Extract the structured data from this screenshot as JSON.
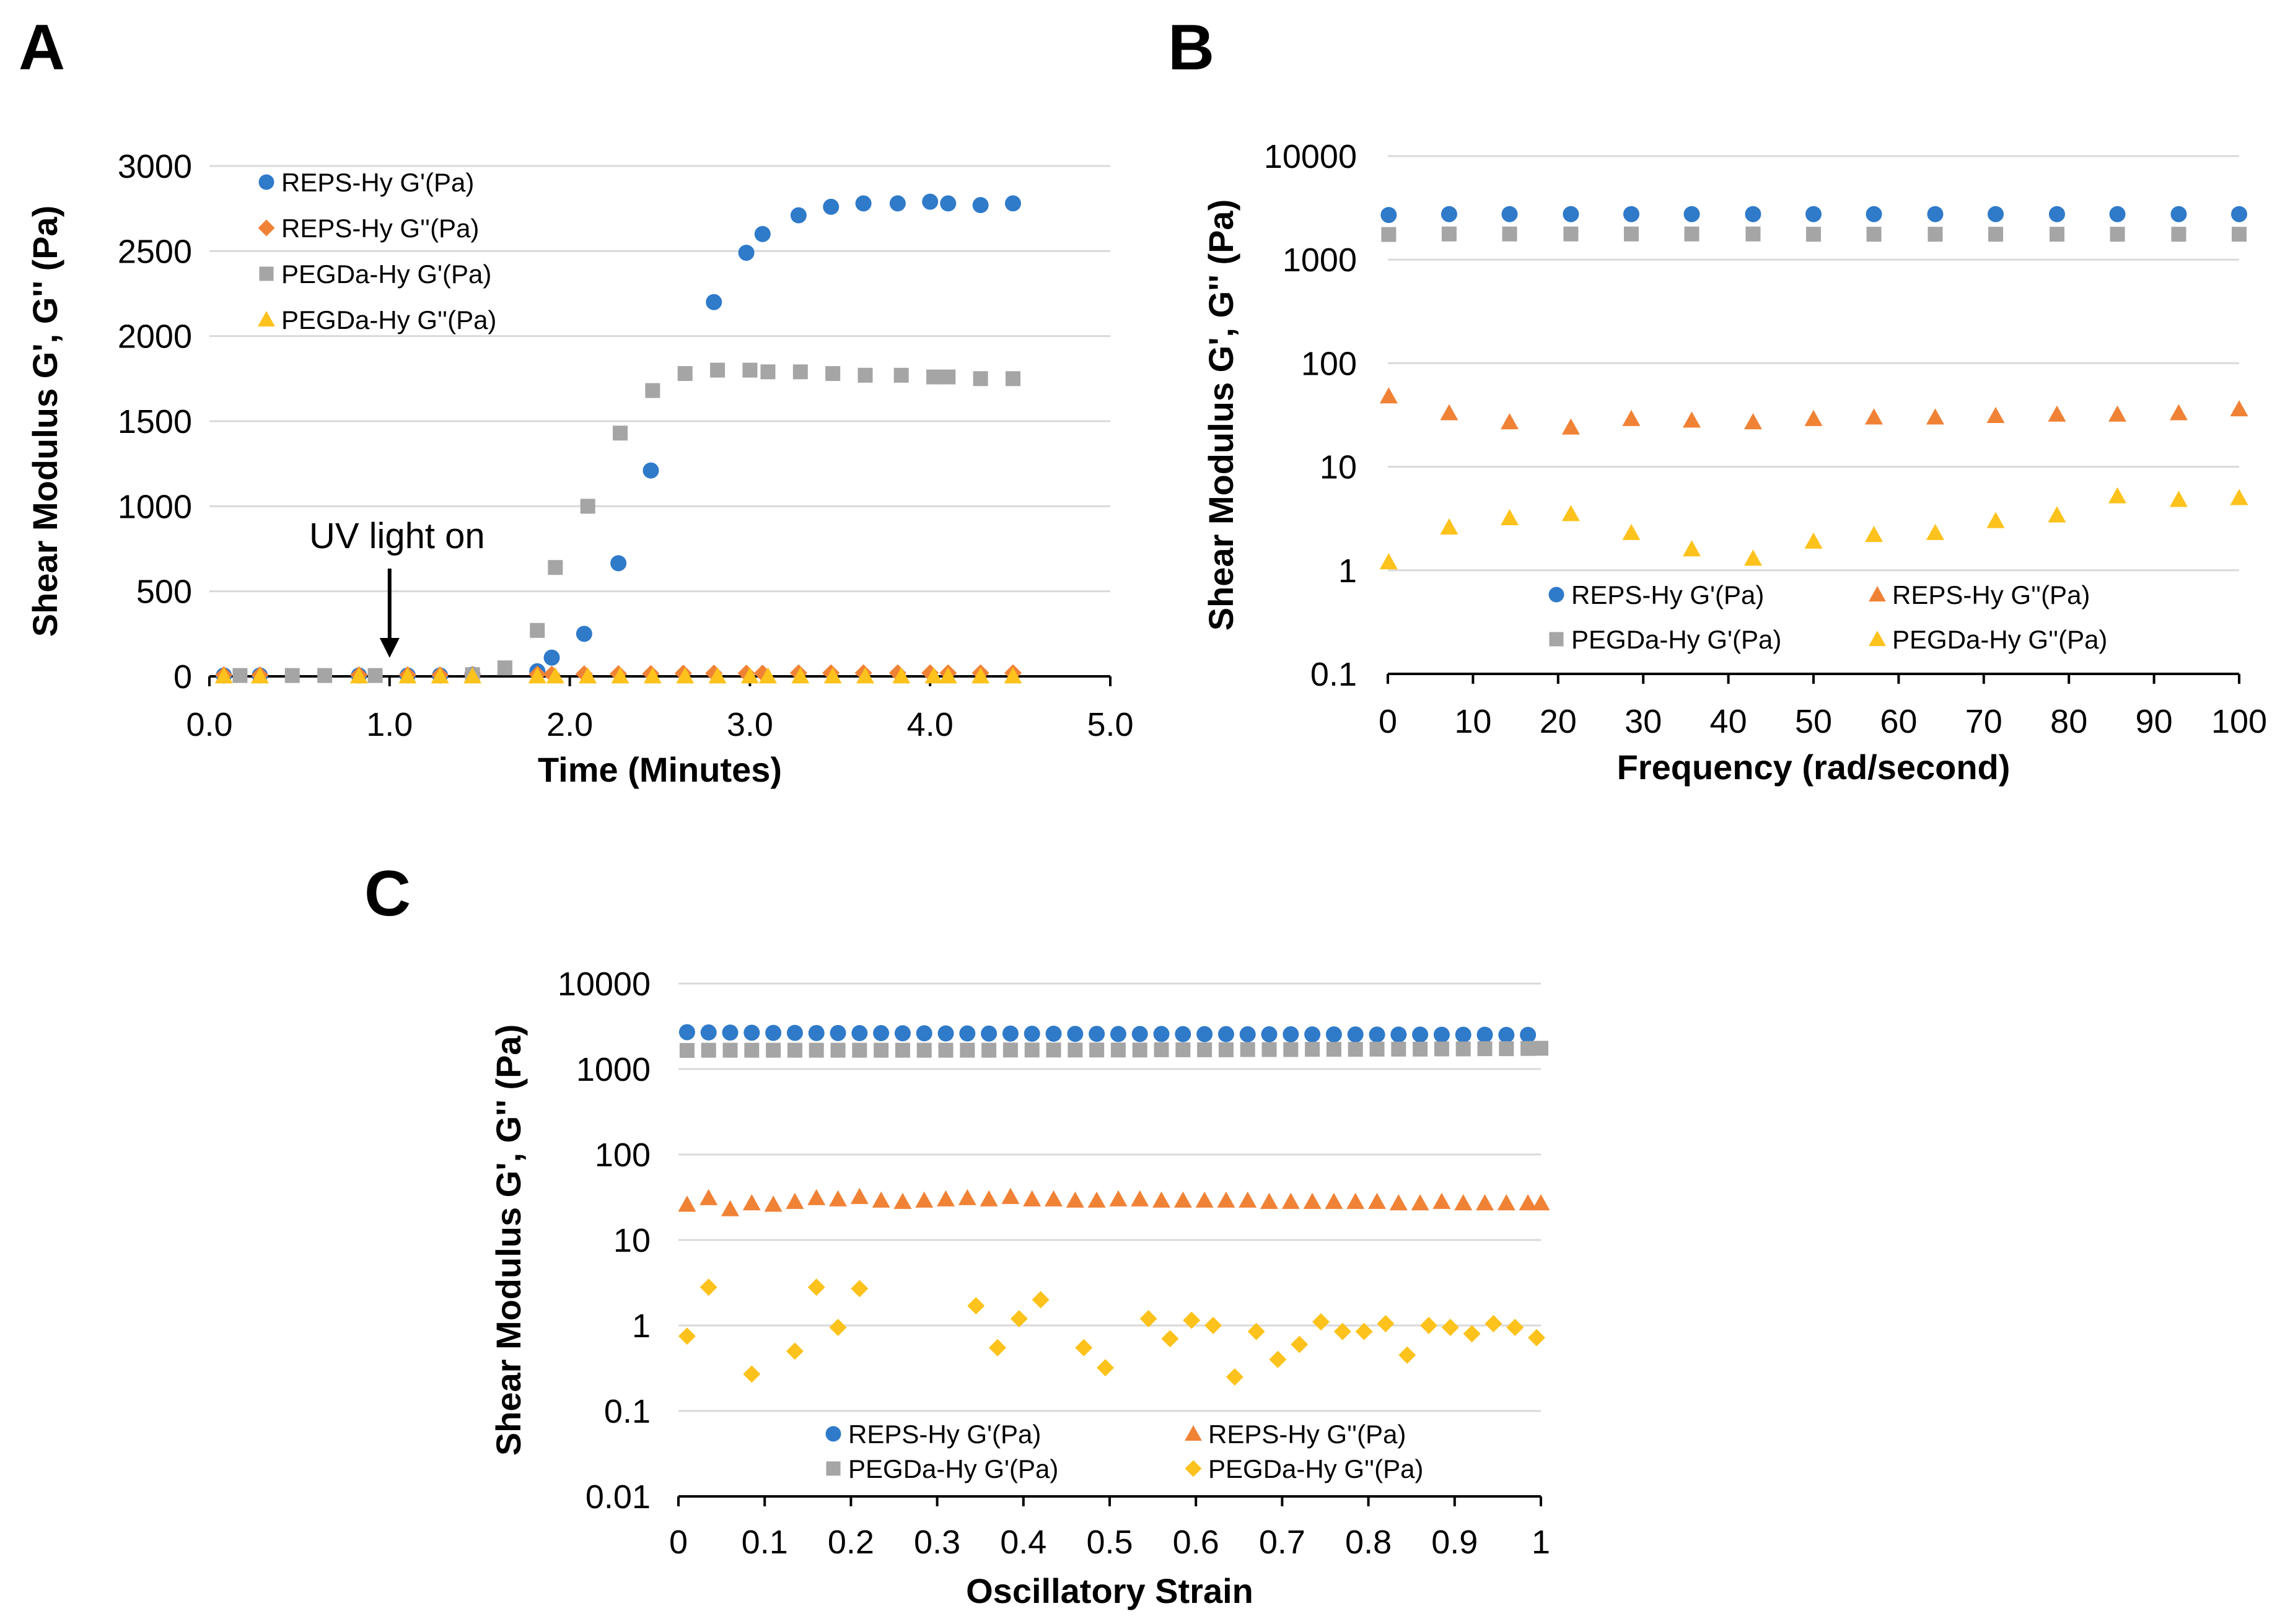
{
  "colors": {
    "reps_gp": "#2f7ac9",
    "reps_gpp": "#f08236",
    "pegda_gp": "#a5a5a5",
    "pegda_gpp": "#fdc21b",
    "grid": "#d9d9d9",
    "axis": "#000000"
  },
  "chart_data": [
    {
      "panel": "A",
      "type": "scatter",
      "title": "",
      "xlabel": "Time (Minutes)",
      "ylabel": "Shear  Modulus  G', G'' (Pa)",
      "xscale": "linear",
      "yscale": "linear",
      "xlim": [
        0,
        5
      ],
      "ylim": [
        0,
        3000
      ],
      "xticks": [
        0,
        1,
        2,
        3,
        4,
        5
      ],
      "xtick_labels": [
        "0.0",
        "1.0",
        "2.0",
        "3.0",
        "4.0",
        "5.0"
      ],
      "yticks": [
        0,
        500,
        1000,
        1500,
        2000,
        2500,
        3000
      ],
      "ytick_labels": [
        "0",
        "500",
        "1000",
        "1500",
        "2000",
        "2500",
        "3000"
      ],
      "grid": "horizontal",
      "legend_position": "top-left",
      "annotation": {
        "text": "UV light on",
        "x": 1.0
      },
      "series": [
        {
          "name": "REPS-Hy G'(Pa)",
          "marker": "circle",
          "color_key": "reps_gp",
          "x": [
            0.08,
            0.28,
            0.83,
            1.1,
            1.28,
            1.46,
            1.82,
            1.9,
            2.08,
            2.27,
            2.45,
            2.8,
            2.98,
            3.07,
            3.27,
            3.45,
            3.63,
            3.82,
            4.0,
            4.1,
            4.28,
            4.46
          ],
          "y": [
            5,
            5,
            5,
            5,
            5,
            10,
            30,
            110,
            250,
            665,
            1210,
            2200,
            2490,
            2600,
            2710,
            2760,
            2780,
            2780,
            2790,
            2780,
            2770,
            2780
          ]
        },
        {
          "name": "REPS-Hy G''(Pa)",
          "marker": "diamond",
          "color_key": "reps_gpp",
          "x": [
            0.08,
            0.28,
            0.83,
            1.1,
            1.28,
            1.46,
            1.82,
            1.9,
            2.08,
            2.27,
            2.45,
            2.63,
            2.8,
            2.98,
            3.07,
            3.27,
            3.45,
            3.63,
            3.82,
            4.0,
            4.1,
            4.28,
            4.46
          ],
          "y": [
            8,
            8,
            8,
            8,
            8,
            10,
            12,
            12,
            14,
            15,
            16,
            18,
            18,
            18,
            18,
            20,
            20,
            20,
            20,
            20,
            20,
            20,
            20
          ]
        },
        {
          "name": "PEGDa-Hy G'(Pa)",
          "marker": "square",
          "color_key": "pegda_gp",
          "x": [
            0.17,
            0.46,
            0.64,
            0.92,
            1.46,
            1.64,
            1.82,
            1.92,
            2.1,
            2.28,
            2.46,
            2.64,
            2.82,
            3.0,
            3.1,
            3.28,
            3.46,
            3.64,
            3.84,
            4.02,
            4.1,
            4.28,
            4.46
          ],
          "y": [
            5,
            5,
            5,
            5,
            10,
            50,
            270,
            640,
            1000,
            1430,
            1680,
            1780,
            1800,
            1800,
            1790,
            1790,
            1780,
            1770,
            1770,
            1760,
            1760,
            1750,
            1750
          ]
        },
        {
          "name": "PEGDa-Hy G''(Pa)",
          "marker": "triangle",
          "color_key": "pegda_gpp",
          "x": [
            0.08,
            0.28,
            0.83,
            1.1,
            1.28,
            1.46,
            1.82,
            1.92,
            2.1,
            2.28,
            2.46,
            2.64,
            2.82,
            3.0,
            3.1,
            3.28,
            3.46,
            3.64,
            3.84,
            4.02,
            4.1,
            4.28,
            4.46
          ],
          "y": [
            1,
            1,
            1,
            1,
            1,
            1,
            1,
            1,
            1,
            1,
            1,
            1,
            1,
            1,
            1,
            1,
            1,
            1,
            1,
            1,
            1,
            1,
            1
          ]
        }
      ]
    },
    {
      "panel": "B",
      "type": "scatter",
      "title": "",
      "xlabel": "Frequency (rad/second)",
      "ylabel": "Shear  Modulus  G', G'' (Pa)",
      "xscale": "linear",
      "yscale": "log",
      "xlim": [
        0,
        100
      ],
      "ylim": [
        0.1,
        10000
      ],
      "xticks": [
        0,
        10,
        20,
        30,
        40,
        50,
        60,
        70,
        80,
        90,
        100
      ],
      "xtick_labels": [
        "0",
        "10",
        "20",
        "30",
        "40",
        "50",
        "60",
        "70",
        "80",
        "90",
        "100"
      ],
      "yticks": [
        0.1,
        1,
        10,
        100,
        1000,
        10000
      ],
      "ytick_labels": [
        "0.1",
        "1",
        "10",
        "100",
        "1000",
        "10000"
      ],
      "grid": "horizontal",
      "legend_position": "bottom",
      "series": [
        {
          "name": "REPS-Hy G'(Pa)",
          "marker": "circle",
          "color_key": "reps_gp",
          "x": [
            0.1,
            7.2,
            14.3,
            21.5,
            28.6,
            35.7,
            42.9,
            50,
            57.1,
            64.3,
            71.4,
            78.6,
            85.7,
            92.9,
            100
          ],
          "y": [
            2700,
            2750,
            2750,
            2750,
            2750,
            2750,
            2750,
            2750,
            2750,
            2750,
            2750,
            2750,
            2750,
            2750,
            2750
          ]
        },
        {
          "name": "REPS-Hy G''(Pa)",
          "marker": "triangle",
          "color_key": "reps_gpp",
          "x": [
            0.1,
            7.2,
            14.3,
            21.5,
            28.6,
            35.7,
            42.9,
            50,
            57.1,
            64.3,
            71.4,
            78.6,
            85.7,
            92.9,
            100
          ],
          "y": [
            48,
            33,
            27,
            24,
            29,
            28,
            27,
            29,
            30,
            30,
            31,
            32,
            32,
            33,
            36
          ]
        },
        {
          "name": "PEGDa-Hy G'(Pa)",
          "marker": "square",
          "color_key": "pegda_gp",
          "x": [
            0.1,
            7.2,
            14.3,
            21.5,
            28.6,
            35.7,
            42.9,
            50,
            57.1,
            64.3,
            71.4,
            78.6,
            85.7,
            92.9,
            100
          ],
          "y": [
            1750,
            1770,
            1770,
            1770,
            1770,
            1770,
            1770,
            1760,
            1760,
            1760,
            1760,
            1760,
            1760,
            1760,
            1760
          ]
        },
        {
          "name": "PEGDa-Hy G''(Pa)",
          "marker": "triangle",
          "color_key": "pegda_gpp",
          "x": [
            0.1,
            7.2,
            14.3,
            21.5,
            28.6,
            35.7,
            42.9,
            50,
            57.1,
            64.3,
            71.4,
            78.6,
            85.7,
            92.9,
            100
          ],
          "y": [
            1.2,
            2.6,
            3.2,
            3.5,
            2.3,
            1.6,
            1.3,
            1.9,
            2.2,
            2.3,
            3.0,
            3.4,
            5.2,
            4.8,
            5.0
          ]
        }
      ]
    },
    {
      "panel": "C",
      "type": "scatter",
      "title": "",
      "xlabel": "Oscillatory Strain",
      "ylabel": "Shear  Modulus  G', G'' (Pa)",
      "xscale": "linear",
      "yscale": "log",
      "xlim": [
        0,
        1
      ],
      "ylim": [
        0.01,
        10000
      ],
      "xticks": [
        0,
        0.1,
        0.2,
        0.3,
        0.4,
        0.5,
        0.6,
        0.7,
        0.8,
        0.9,
        1
      ],
      "xtick_labels": [
        "0",
        "0.1",
        "0.2",
        "0.3",
        "0.4",
        "0.5",
        "0.6",
        "0.7",
        "0.8",
        "0.9",
        "1"
      ],
      "yticks": [
        0.01,
        0.1,
        1,
        10,
        100,
        1000,
        10000
      ],
      "ytick_labels": [
        "0.01",
        "0.1",
        "1",
        "10",
        "100",
        "1000",
        "10000"
      ],
      "grid": "horizontal",
      "legend_position": "bottom",
      "series": [
        {
          "name": "REPS-Hy G'(Pa)",
          "marker": "circle",
          "color_key": "reps_gp",
          "x": [
            0.01,
            0.035,
            0.06,
            0.085,
            0.11,
            0.135,
            0.16,
            0.185,
            0.21,
            0.235,
            0.26,
            0.285,
            0.31,
            0.335,
            0.36,
            0.385,
            0.41,
            0.435,
            0.46,
            0.485,
            0.51,
            0.535,
            0.56,
            0.585,
            0.61,
            0.635,
            0.66,
            0.685,
            0.71,
            0.735,
            0.76,
            0.785,
            0.81,
            0.835,
            0.86,
            0.885,
            0.91,
            0.935,
            0.96,
            0.985
          ],
          "y": [
            2700,
            2680,
            2670,
            2660,
            2650,
            2650,
            2640,
            2640,
            2630,
            2630,
            2620,
            2620,
            2610,
            2610,
            2600,
            2600,
            2590,
            2590,
            2580,
            2580,
            2570,
            2570,
            2570,
            2560,
            2560,
            2560,
            2550,
            2550,
            2550,
            2540,
            2540,
            2540,
            2530,
            2530,
            2530,
            2520,
            2520,
            2520,
            2510,
            2510
          ]
        },
        {
          "name": "REPS-Hy G''(Pa)",
          "marker": "triangle",
          "color_key": "reps_gpp",
          "x": [
            0.01,
            0.035,
            0.06,
            0.085,
            0.11,
            0.135,
            0.16,
            0.185,
            0.21,
            0.235,
            0.26,
            0.285,
            0.31,
            0.335,
            0.36,
            0.385,
            0.41,
            0.435,
            0.46,
            0.485,
            0.51,
            0.535,
            0.56,
            0.585,
            0.61,
            0.635,
            0.66,
            0.685,
            0.71,
            0.735,
            0.76,
            0.785,
            0.81,
            0.835,
            0.86,
            0.885,
            0.91,
            0.935,
            0.96,
            0.985,
            1.0
          ],
          "y": [
            26,
            31,
            23,
            27,
            26,
            28,
            31,
            30,
            32,
            29,
            28,
            29,
            30,
            31,
            30,
            32,
            30,
            30,
            29,
            29,
            30,
            30,
            29,
            29,
            29,
            29,
            29,
            28,
            28,
            28,
            28,
            28,
            28,
            27,
            27,
            28,
            27,
            27,
            27,
            27,
            27
          ]
        },
        {
          "name": "PEGDa-Hy G'(Pa)",
          "marker": "square",
          "color_key": "pegda_gp",
          "x": [
            0.01,
            0.035,
            0.06,
            0.085,
            0.11,
            0.135,
            0.16,
            0.185,
            0.21,
            0.235,
            0.26,
            0.285,
            0.31,
            0.335,
            0.36,
            0.385,
            0.41,
            0.435,
            0.46,
            0.485,
            0.51,
            0.535,
            0.56,
            0.585,
            0.61,
            0.635,
            0.66,
            0.685,
            0.71,
            0.735,
            0.76,
            0.785,
            0.81,
            0.835,
            0.86,
            0.885,
            0.91,
            0.935,
            0.96,
            0.985,
            1.0
          ],
          "y": [
            1650,
            1660,
            1660,
            1660,
            1660,
            1660,
            1660,
            1660,
            1660,
            1660,
            1660,
            1660,
            1660,
            1660,
            1660,
            1670,
            1670,
            1670,
            1670,
            1670,
            1670,
            1670,
            1680,
            1680,
            1680,
            1680,
            1690,
            1690,
            1690,
            1700,
            1700,
            1700,
            1710,
            1710,
            1710,
            1720,
            1720,
            1730,
            1730,
            1740,
            1750
          ]
        },
        {
          "name": "PEGDa-Hy G''(Pa)",
          "marker": "diamond",
          "color_key": "pegda_gpp",
          "x": [
            0.01,
            0.035,
            0.085,
            0.135,
            0.16,
            0.185,
            0.21,
            0.345,
            0.37,
            0.395,
            0.42,
            0.47,
            0.495,
            0.545,
            0.57,
            0.595,
            0.62,
            0.645,
            0.67,
            0.695,
            0.72,
            0.745,
            0.77,
            0.795,
            0.82,
            0.845,
            0.87,
            0.895,
            0.92,
            0.945,
            0.97,
            0.995
          ],
          "y": [
            0.75,
            2.8,
            0.27,
            0.5,
            2.8,
            0.95,
            2.7,
            1.7,
            0.55,
            1.2,
            2.0,
            0.55,
            0.32,
            1.2,
            0.7,
            1.15,
            1.0,
            0.25,
            0.85,
            0.4,
            0.6,
            1.1,
            0.85,
            0.85,
            1.05,
            0.45,
            1.0,
            0.95,
            0.8,
            1.05,
            0.95,
            0.72
          ]
        }
      ]
    }
  ]
}
